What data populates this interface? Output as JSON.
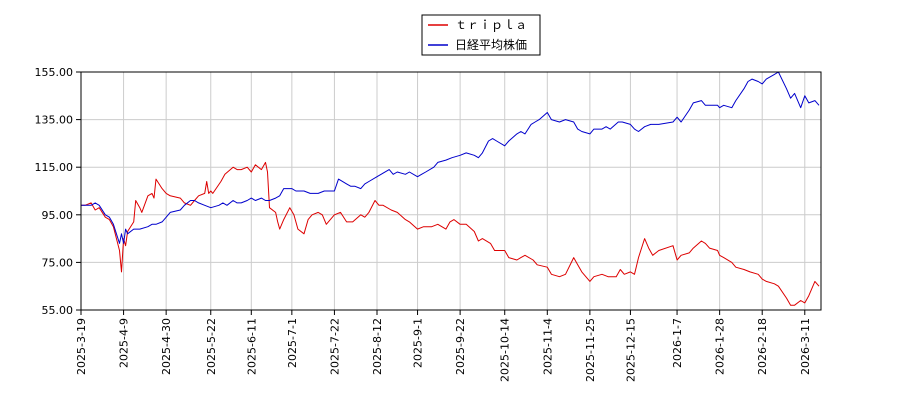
{
  "chart_data": {
    "type": "line",
    "title": "",
    "xlabel": "",
    "ylabel": "",
    "ylim": [
      55,
      155
    ],
    "yticks": [
      "155.00",
      "135.00",
      "115.00",
      "95.00",
      "75.00",
      "55.00"
    ],
    "ytick_values": [
      155,
      135,
      115,
      95,
      75,
      55
    ],
    "xlim": [
      "2025-03-19",
      "2026-03-19"
    ],
    "xticks": [
      "2025-3-19",
      "2025-4-9",
      "2025-4-30",
      "2025-5-22",
      "2025-6-11",
      "2025-7-1",
      "2025-7-22",
      "2025-8-12",
      "2025-9-1",
      "2025-9-22",
      "2025-10-14",
      "2025-11-4",
      "2025-11-25",
      "2025-12-15",
      "2026-1-7",
      "2026-1-28",
      "2026-2-18",
      "2026-3-11"
    ],
    "grid": true,
    "legend": "top-center",
    "series": [
      {
        "name": "ｔｒｉｐｌａ",
        "color": "#dd0000",
        "points": [
          [
            "2025-03-19",
            99
          ],
          [
            "2025-03-21",
            99
          ],
          [
            "2025-03-24",
            100
          ],
          [
            "2025-03-26",
            97
          ],
          [
            "2025-03-28",
            98
          ],
          [
            "2025-03-31",
            94
          ],
          [
            "2025-04-02",
            93
          ],
          [
            "2025-04-04",
            90
          ],
          [
            "2025-04-07",
            80
          ],
          [
            "2025-04-08",
            71
          ],
          [
            "2025-04-09",
            85
          ],
          [
            "2025-04-10",
            82
          ],
          [
            "2025-04-11",
            88
          ],
          [
            "2025-04-14",
            92
          ],
          [
            "2025-04-15",
            101
          ],
          [
            "2025-04-17",
            98
          ],
          [
            "2025-04-18",
            96
          ],
          [
            "2025-04-21",
            103
          ],
          [
            "2025-04-23",
            104
          ],
          [
            "2025-04-24",
            102
          ],
          [
            "2025-04-25",
            110
          ],
          [
            "2025-04-28",
            106
          ],
          [
            "2025-04-30",
            104
          ],
          [
            "2025-05-02",
            103
          ],
          [
            "2025-05-07",
            102
          ],
          [
            "2025-05-09",
            100
          ],
          [
            "2025-05-12",
            99
          ],
          [
            "2025-05-14",
            101
          ],
          [
            "2025-05-16",
            103
          ],
          [
            "2025-05-19",
            104
          ],
          [
            "2025-05-20",
            109
          ],
          [
            "2025-05-21",
            104
          ],
          [
            "2025-05-22",
            105
          ],
          [
            "2025-05-23",
            104
          ],
          [
            "2025-05-27",
            109
          ],
          [
            "2025-05-29",
            112
          ],
          [
            "2025-06-02",
            115
          ],
          [
            "2025-06-04",
            114
          ],
          [
            "2025-06-06",
            114
          ],
          [
            "2025-06-09",
            115
          ],
          [
            "2025-06-11",
            113
          ],
          [
            "2025-06-13",
            116
          ],
          [
            "2025-06-16",
            114
          ],
          [
            "2025-06-18",
            117
          ],
          [
            "2025-06-19",
            113
          ],
          [
            "2025-06-20",
            98
          ],
          [
            "2025-06-23",
            96
          ],
          [
            "2025-06-24",
            92
          ],
          [
            "2025-06-25",
            89
          ],
          [
            "2025-06-27",
            93
          ],
          [
            "2025-06-30",
            98
          ],
          [
            "2025-07-02",
            95
          ],
          [
            "2025-07-04",
            89
          ],
          [
            "2025-07-07",
            87
          ],
          [
            "2025-07-09",
            93
          ],
          [
            "2025-07-11",
            95
          ],
          [
            "2025-07-14",
            96
          ],
          [
            "2025-07-16",
            95
          ],
          [
            "2025-07-18",
            91
          ],
          [
            "2025-07-22",
            95
          ],
          [
            "2025-07-25",
            96
          ],
          [
            "2025-07-28",
            92
          ],
          [
            "2025-07-31",
            92
          ],
          [
            "2025-08-04",
            95
          ],
          [
            "2025-08-06",
            94
          ],
          [
            "2025-08-08",
            96
          ],
          [
            "2025-08-11",
            101
          ],
          [
            "2025-08-13",
            99
          ],
          [
            "2025-08-15",
            99
          ],
          [
            "2025-08-19",
            97
          ],
          [
            "2025-08-22",
            96
          ],
          [
            "2025-08-26",
            93
          ],
          [
            "2025-08-28",
            92
          ],
          [
            "2025-09-01",
            89
          ],
          [
            "2025-09-04",
            90
          ],
          [
            "2025-09-08",
            90
          ],
          [
            "2025-09-11",
            91
          ],
          [
            "2025-09-15",
            89
          ],
          [
            "2025-09-17",
            92
          ],
          [
            "2025-09-19",
            93
          ],
          [
            "2025-09-22",
            91
          ],
          [
            "2025-09-25",
            91
          ],
          [
            "2025-09-29",
            88
          ],
          [
            "2025-10-01",
            84
          ],
          [
            "2025-10-03",
            85
          ],
          [
            "2025-10-07",
            83
          ],
          [
            "2025-10-09",
            80
          ],
          [
            "2025-10-14",
            80
          ],
          [
            "2025-10-16",
            77
          ],
          [
            "2025-10-20",
            76
          ],
          [
            "2025-10-22",
            77
          ],
          [
            "2025-10-24",
            78
          ],
          [
            "2025-10-28",
            76
          ],
          [
            "2025-10-30",
            74
          ],
          [
            "2025-11-04",
            73
          ],
          [
            "2025-11-06",
            70
          ],
          [
            "2025-11-10",
            69
          ],
          [
            "2025-11-13",
            70
          ],
          [
            "2025-11-17",
            77
          ],
          [
            "2025-11-19",
            74
          ],
          [
            "2025-11-21",
            71
          ],
          [
            "2025-11-25",
            67
          ],
          [
            "2025-11-27",
            69
          ],
          [
            "2025-12-01",
            70
          ],
          [
            "2025-12-04",
            69
          ],
          [
            "2025-12-08",
            69
          ],
          [
            "2025-12-10",
            72
          ],
          [
            "2025-12-12",
            70
          ],
          [
            "2025-12-15",
            71
          ],
          [
            "2025-12-17",
            70
          ],
          [
            "2025-12-19",
            77
          ],
          [
            "2025-12-22",
            85
          ],
          [
            "2025-12-24",
            81
          ],
          [
            "2025-12-26",
            78
          ],
          [
            "2025-12-29",
            80
          ],
          [
            "2026-01-05",
            82
          ],
          [
            "2026-01-07",
            76
          ],
          [
            "2026-01-09",
            78
          ],
          [
            "2026-01-13",
            79
          ],
          [
            "2026-01-15",
            81
          ],
          [
            "2026-01-19",
            84
          ],
          [
            "2026-01-21",
            83
          ],
          [
            "2026-01-23",
            81
          ],
          [
            "2026-01-27",
            80
          ],
          [
            "2026-01-28",
            78
          ],
          [
            "2026-01-30",
            77
          ],
          [
            "2026-02-03",
            75
          ],
          [
            "2026-02-05",
            73
          ],
          [
            "2026-02-09",
            72
          ],
          [
            "2026-02-12",
            71
          ],
          [
            "2026-02-16",
            70
          ],
          [
            "2026-02-18",
            68
          ],
          [
            "2026-02-20",
            67
          ],
          [
            "2026-02-24",
            66
          ],
          [
            "2026-02-26",
            65
          ],
          [
            "2026-03-02",
            60
          ],
          [
            "2026-03-04",
            57
          ],
          [
            "2026-03-06",
            57
          ],
          [
            "2026-03-09",
            59
          ],
          [
            "2026-03-11",
            58
          ],
          [
            "2026-03-13",
            61
          ],
          [
            "2026-03-16",
            67
          ],
          [
            "2026-03-18",
            65
          ]
        ]
      },
      {
        "name": "日経平均株価",
        "color": "#0000cc",
        "points": [
          [
            "2025-03-19",
            99
          ],
          [
            "2025-03-21",
            99
          ],
          [
            "2025-03-24",
            99
          ],
          [
            "2025-03-26",
            100
          ],
          [
            "2025-03-28",
            99
          ],
          [
            "2025-03-31",
            95
          ],
          [
            "2025-04-02",
            94
          ],
          [
            "2025-04-04",
            91
          ],
          [
            "2025-04-07",
            83
          ],
          [
            "2025-04-08",
            87
          ],
          [
            "2025-04-09",
            83
          ],
          [
            "2025-04-10",
            89
          ],
          [
            "2025-04-11",
            87
          ],
          [
            "2025-04-14",
            89
          ],
          [
            "2025-04-17",
            89
          ],
          [
            "2025-04-21",
            90
          ],
          [
            "2025-04-23",
            91
          ],
          [
            "2025-04-25",
            91
          ],
          [
            "2025-04-28",
            92
          ],
          [
            "2025-04-30",
            94
          ],
          [
            "2025-05-02",
            96
          ],
          [
            "2025-05-07",
            97
          ],
          [
            "2025-05-09",
            99
          ],
          [
            "2025-05-12",
            101
          ],
          [
            "2025-05-14",
            101
          ],
          [
            "2025-05-16",
            100
          ],
          [
            "2025-05-19",
            99
          ],
          [
            "2025-05-22",
            98
          ],
          [
            "2025-05-26",
            99
          ],
          [
            "2025-05-28",
            100
          ],
          [
            "2025-05-30",
            99
          ],
          [
            "2025-06-02",
            101
          ],
          [
            "2025-06-04",
            100
          ],
          [
            "2025-06-06",
            100
          ],
          [
            "2025-06-09",
            101
          ],
          [
            "2025-06-11",
            102
          ],
          [
            "2025-06-13",
            101
          ],
          [
            "2025-06-16",
            102
          ],
          [
            "2025-06-18",
            101
          ],
          [
            "2025-06-20",
            101
          ],
          [
            "2025-06-23",
            102
          ],
          [
            "2025-06-25",
            103
          ],
          [
            "2025-06-27",
            106
          ],
          [
            "2025-07-01",
            106
          ],
          [
            "2025-07-03",
            105
          ],
          [
            "2025-07-07",
            105
          ],
          [
            "2025-07-10",
            104
          ],
          [
            "2025-07-14",
            104
          ],
          [
            "2025-07-17",
            105
          ],
          [
            "2025-07-22",
            105
          ],
          [
            "2025-07-24",
            110
          ],
          [
            "2025-07-28",
            108
          ],
          [
            "2025-07-30",
            107
          ],
          [
            "2025-08-01",
            107
          ],
          [
            "2025-08-04",
            106
          ],
          [
            "2025-08-06",
            108
          ],
          [
            "2025-08-08",
            109
          ],
          [
            "2025-08-12",
            111
          ],
          [
            "2025-08-14",
            112
          ],
          [
            "2025-08-18",
            114
          ],
          [
            "2025-08-20",
            112
          ],
          [
            "2025-08-22",
            113
          ],
          [
            "2025-08-26",
            112
          ],
          [
            "2025-08-28",
            113
          ],
          [
            "2025-09-01",
            111
          ],
          [
            "2025-09-03",
            112
          ],
          [
            "2025-09-05",
            113
          ],
          [
            "2025-09-09",
            115
          ],
          [
            "2025-09-11",
            117
          ],
          [
            "2025-09-15",
            118
          ],
          [
            "2025-09-18",
            119
          ],
          [
            "2025-09-22",
            120
          ],
          [
            "2025-09-25",
            121
          ],
          [
            "2025-09-29",
            120
          ],
          [
            "2025-10-01",
            119
          ],
          [
            "2025-10-03",
            121
          ],
          [
            "2025-10-06",
            126
          ],
          [
            "2025-10-08",
            127
          ],
          [
            "2025-10-10",
            126
          ],
          [
            "2025-10-14",
            124
          ],
          [
            "2025-10-16",
            126
          ],
          [
            "2025-10-20",
            129
          ],
          [
            "2025-10-22",
            130
          ],
          [
            "2025-10-24",
            129
          ],
          [
            "2025-10-27",
            133
          ],
          [
            "2025-10-29",
            134
          ],
          [
            "2025-10-31",
            135
          ],
          [
            "2025-11-04",
            138
          ],
          [
            "2025-11-06",
            135
          ],
          [
            "2025-11-10",
            134
          ],
          [
            "2025-11-13",
            135
          ],
          [
            "2025-11-17",
            134
          ],
          [
            "2025-11-19",
            131
          ],
          [
            "2025-11-21",
            130
          ],
          [
            "2025-11-25",
            129
          ],
          [
            "2025-11-27",
            131
          ],
          [
            "2025-12-01",
            131
          ],
          [
            "2025-12-03",
            132
          ],
          [
            "2025-12-05",
            131
          ],
          [
            "2025-12-09",
            134
          ],
          [
            "2025-12-11",
            134
          ],
          [
            "2025-12-15",
            133
          ],
          [
            "2025-12-17",
            131
          ],
          [
            "2025-12-19",
            130
          ],
          [
            "2025-12-22",
            132
          ],
          [
            "2025-12-25",
            133
          ],
          [
            "2025-12-29",
            133
          ],
          [
            "2026-01-05",
            134
          ],
          [
            "2026-01-07",
            136
          ],
          [
            "2026-01-09",
            134
          ],
          [
            "2026-01-13",
            139
          ],
          [
            "2026-01-15",
            142
          ],
          [
            "2026-01-19",
            143
          ],
          [
            "2026-01-21",
            141
          ],
          [
            "2026-01-23",
            141
          ],
          [
            "2026-01-27",
            141
          ],
          [
            "2026-01-28",
            140
          ],
          [
            "2026-01-30",
            141
          ],
          [
            "2026-02-03",
            140
          ],
          [
            "2026-02-05",
            143
          ],
          [
            "2026-02-09",
            148
          ],
          [
            "2026-02-11",
            151
          ],
          [
            "2026-02-13",
            152
          ],
          [
            "2026-02-16",
            151
          ],
          [
            "2026-02-18",
            150
          ],
          [
            "2026-02-20",
            152
          ],
          [
            "2026-02-24",
            154
          ],
          [
            "2026-02-26",
            155
          ],
          [
            "2026-03-02",
            148
          ],
          [
            "2026-03-04",
            144
          ],
          [
            "2026-03-06",
            146
          ],
          [
            "2026-03-09",
            140
          ],
          [
            "2026-03-11",
            145
          ],
          [
            "2026-03-13",
            142
          ],
          [
            "2026-03-16",
            143
          ],
          [
            "2026-03-18",
            141
          ]
        ]
      }
    ]
  }
}
